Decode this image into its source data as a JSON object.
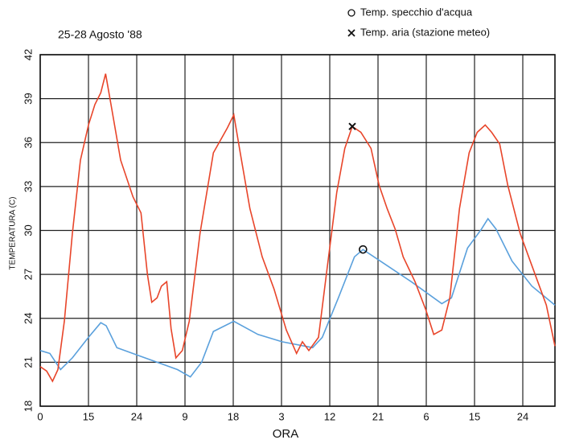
{
  "chart_data": {
    "type": "line",
    "title": "25-28 Agosto '88",
    "x_label": "ORA",
    "y_label": "TEMPERATURA (C)",
    "xlim": [
      0,
      96
    ],
    "ylim": [
      18,
      42
    ],
    "xticks": [
      0,
      {
        "value": 9,
        "label": "15"
      },
      {
        "value": 18,
        "label": "24"
      },
      {
        "value": 27,
        "label": "9"
      },
      {
        "value": 36,
        "label": "18"
      },
      {
        "value": 45,
        "label": "3"
      },
      {
        "value": 54,
        "label": "12"
      },
      {
        "value": 63,
        "label": "21"
      },
      {
        "value": 72,
        "label": "6"
      },
      {
        "value": 81,
        "label": "15"
      },
      {
        "value": 90,
        "label": "24"
      }
    ],
    "yticks": [
      18,
      21,
      24,
      27,
      30,
      33,
      36,
      39,
      42
    ],
    "grid": true,
    "series": [
      {
        "name": "Temp. specchio d'acqua",
        "color": "#5aa0dc",
        "marker": {
          "shape": "circle",
          "x": 60.2,
          "y": 28.7
        },
        "x": [
          0,
          1.8,
          3.8,
          6,
          9,
          11.3,
          12.3,
          14.3,
          18.8,
          22.6,
          25.6,
          28,
          30.1,
          32.3,
          36.1,
          40.6,
          45.1,
          50.8,
          52.6,
          55.6,
          58.6,
          60.2,
          64.7,
          69.2,
          74.9,
          76.7,
          79.7,
          82.3,
          83.5,
          85,
          88,
          91.7,
          96
        ],
        "values": [
          21.8,
          21.6,
          20.5,
          21.3,
          22.7,
          23.7,
          23.5,
          22,
          21.4,
          20.9,
          20.5,
          20,
          21,
          23.1,
          23.8,
          22.9,
          22.4,
          22,
          22.7,
          25.4,
          28.2,
          28.7,
          27.6,
          26.5,
          25,
          25.4,
          28.8,
          30.1,
          30.8,
          30.1,
          27.9,
          26.2,
          24.9
        ]
      },
      {
        "name": "Temp. aria (stazione meteo)",
        "color": "#e8452a",
        "marker": {
          "shape": "cross",
          "x": 58.2,
          "y": 37.1
        },
        "x": [
          0,
          1.2,
          2.3,
          3.3,
          4.5,
          6,
          7.5,
          9,
          10.2,
          11.3,
          12.2,
          13.2,
          15,
          17.3,
          18.8,
          20,
          20.8,
          21.8,
          22.6,
          23.6,
          24.4,
          25.3,
          26.5,
          27.8,
          29.8,
          32.3,
          34.9,
          36.1,
          37.3,
          39.1,
          41.4,
          43.6,
          45.9,
          47.8,
          48.9,
          50.1,
          51.9,
          53.4,
          55.3,
          56.8,
          58.2,
          59.8,
          61.7,
          63.2,
          64.7,
          66.2,
          67.7,
          69.9,
          71.9,
          73.4,
          74.9,
          76.4,
          78.2,
          80,
          81.5,
          83,
          84.2,
          85.7,
          87.2,
          89.5,
          91.7,
          94.4,
          96
        ],
        "values": [
          20.7,
          20.4,
          19.7,
          20.5,
          23.8,
          29.8,
          34.8,
          37.2,
          38.6,
          39.4,
          40.7,
          38.6,
          34.8,
          32.3,
          31.2,
          27,
          25.1,
          25.4,
          26.2,
          26.5,
          23.3,
          21.3,
          21.8,
          23.8,
          29.8,
          35.3,
          37,
          37.9,
          35.3,
          31.5,
          28.2,
          26,
          23.2,
          21.6,
          22.4,
          21.8,
          22.7,
          27.1,
          32.6,
          35.6,
          37.1,
          36.7,
          35.6,
          33.1,
          31.5,
          30.1,
          28.2,
          26.5,
          24.6,
          22.9,
          23.2,
          25.4,
          31.5,
          35.3,
          36.7,
          37.2,
          36.7,
          35.9,
          33.1,
          29.8,
          27.6,
          24.9,
          22.1
        ]
      }
    ]
  }
}
